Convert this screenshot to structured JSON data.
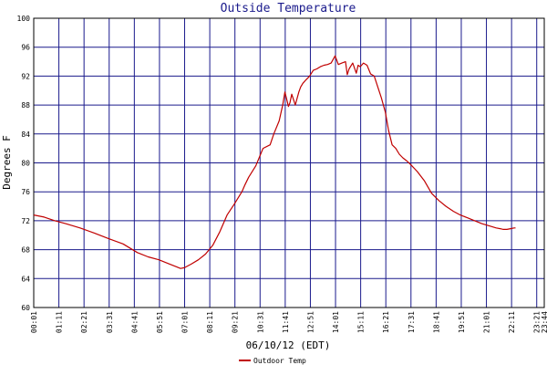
{
  "chart_data": {
    "type": "line",
    "title": "Outside Temperature",
    "xlabel": "06/10/12 (EDT)",
    "ylabel": "Degrees F",
    "ylim": [
      60,
      100
    ],
    "yticks": [
      60,
      64,
      68,
      72,
      76,
      80,
      84,
      88,
      92,
      96,
      100
    ],
    "xticks": [
      "00:01",
      "01:11",
      "02:21",
      "03:31",
      "04:41",
      "05:51",
      "07:01",
      "08:11",
      "09:21",
      "10:31",
      "11:41",
      "12:51",
      "14:01",
      "15:11",
      "16:21",
      "17:31",
      "18:41",
      "19:51",
      "21:01",
      "22:11",
      "23:21",
      "23:44"
    ],
    "grid": true,
    "legend": "bottom",
    "colors": {
      "series": "#c00000",
      "grid": "#1a1a8c",
      "axis": "#000000",
      "title": "#1a1a8c"
    },
    "series": [
      {
        "name": "Outdoor Temp",
        "x_minutes": [
          1,
          30,
          60,
          90,
          130,
          170,
          211,
          250,
          290,
          320,
          350,
          380,
          400,
          410,
          421,
          440,
          460,
          480,
          500,
          520,
          540,
          560,
          581,
          590,
          600,
          620,
          640,
          660,
          670,
          685,
          695,
          701,
          711,
          715,
          720,
          730,
          740,
          745,
          751,
          760,
          770,
          780,
          790,
          800,
          810,
          820,
          830,
          841,
          850,
          860,
          870,
          875,
          880,
          890,
          900,
          905,
          911,
          920,
          930,
          940,
          950,
          960,
          970,
          981,
          990,
          1000,
          1010,
          1020,
          1030,
          1040,
          1051,
          1070,
          1090,
          1110,
          1130,
          1150,
          1171,
          1190,
          1210,
          1230,
          1250,
          1270,
          1290,
          1301,
          1310,
          1320,
          1330,
          1340,
          1344
        ],
        "values": [
          72.8,
          72.5,
          72.0,
          71.6,
          71.0,
          70.3,
          69.5,
          68.8,
          67.6,
          67.0,
          66.6,
          66.0,
          65.6,
          65.4,
          65.5,
          66.0,
          66.6,
          67.4,
          68.6,
          70.5,
          72.8,
          74.3,
          76.0,
          77.0,
          78.0,
          79.6,
          82.0,
          82.5,
          84.0,
          85.8,
          88.0,
          89.8,
          87.8,
          88.3,
          89.5,
          88.0,
          89.8,
          90.5,
          91.0,
          91.5,
          92.0,
          92.8,
          93.0,
          93.3,
          93.5,
          93.6,
          93.8,
          94.8,
          93.6,
          93.8,
          94.0,
          92.2,
          93.0,
          93.8,
          92.4,
          93.5,
          93.3,
          93.8,
          93.5,
          92.3,
          92.0,
          90.5,
          89.0,
          87.0,
          84.5,
          82.5,
          82.0,
          81.2,
          80.7,
          80.3,
          79.8,
          78.8,
          77.5,
          75.8,
          74.8,
          74.0,
          73.3,
          72.8,
          72.4,
          72.0,
          71.6,
          71.3,
          71.0,
          70.9,
          70.8,
          70.8,
          70.9,
          71.0,
          71.0
        ]
      }
    ]
  }
}
